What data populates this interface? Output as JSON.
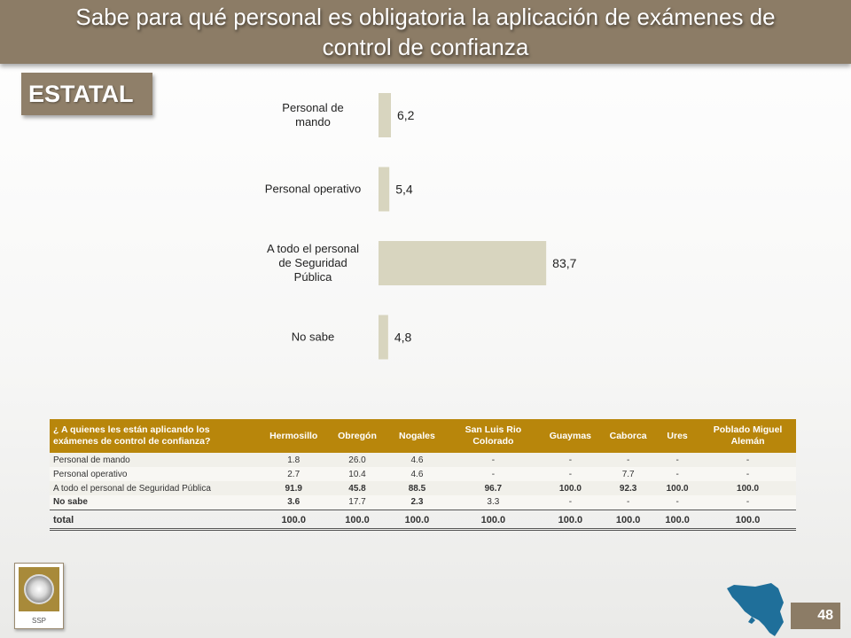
{
  "title": "Sabe para qué personal es obligatoria la aplicación de exámenes de control de confianza",
  "tab_label": "ESTATAL",
  "chart_data": {
    "type": "bar",
    "orientation": "horizontal",
    "categories": [
      [
        "Personal de",
        "mando"
      ],
      [
        "Personal operativo"
      ],
      [
        "A todo el personal",
        "de Seguridad",
        "Pública"
      ],
      [
        "No sabe"
      ]
    ],
    "values": [
      6.2,
      5.4,
      83.7,
      4.8
    ],
    "value_labels": [
      "6,2",
      "5,4",
      "83,7",
      "4,8"
    ],
    "xlim": [
      0,
      100
    ],
    "bar_color": "#d8d5bf",
    "grid": false
  },
  "table": {
    "headers": [
      "¿ A quienes les están aplicando los exámenes de control de confianza?",
      "Hermosillo",
      "Obregón",
      "Nogales",
      "San Luis Rio Colorado",
      "Guaymas",
      "Caborca",
      "Ures",
      "Poblado Miguel Alemán"
    ],
    "rows": [
      [
        "Personal de mando",
        "1.8",
        "26.0",
        "4.6",
        "-",
        "-",
        "-",
        "-",
        "-"
      ],
      [
        "Personal operativo",
        "2.7",
        "10.4",
        "4.6",
        "-",
        "-",
        "7.7",
        "-",
        "-"
      ],
      [
        "A todo el personal de Seguridad Pública",
        "91.9",
        "45.8",
        "88.5",
        "96.7",
        "100.0",
        "92.3",
        "100.0",
        "100.0"
      ],
      [
        "No sabe",
        "3.6",
        "17.7",
        "2.3",
        "3.3",
        "-",
        "-",
        "-",
        "-"
      ]
    ],
    "total": [
      "total",
      "100.0",
      "100.0",
      "100.0",
      "100.0",
      "100.0",
      "100.0",
      "100.0",
      "100.0"
    ],
    "header_color": "#b8860b"
  },
  "logo_text": "SSP",
  "page_number": "48"
}
